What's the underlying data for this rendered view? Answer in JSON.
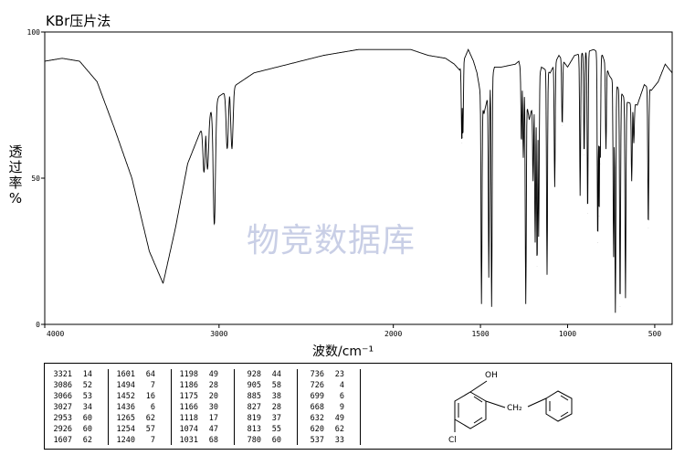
{
  "title": "KBr压片法",
  "watermark": "物竞数据库",
  "chart_data": {
    "type": "line",
    "title": "KBr压片法",
    "xlabel": "波数/cm⁻¹",
    "ylabel_chars": [
      "透",
      "过",
      "率",
      "%"
    ],
    "xlim": [
      4000,
      400
    ],
    "ylim": [
      0,
      100
    ],
    "x_ticks": [
      4000,
      3000,
      2000,
      1500,
      1000,
      500
    ],
    "y_ticks": [
      0,
      50,
      100
    ],
    "grid": false,
    "baseline": [
      [
        4000,
        90
      ],
      [
        3900,
        91
      ],
      [
        3800,
        90
      ],
      [
        3700,
        83
      ],
      [
        3600,
        67
      ],
      [
        3500,
        50
      ],
      [
        3400,
        25
      ],
      [
        3321,
        14
      ],
      [
        3250,
        33
      ],
      [
        3180,
        55
      ],
      [
        3100,
        67
      ],
      [
        3000,
        78
      ],
      [
        2900,
        82
      ],
      [
        2800,
        86
      ],
      [
        2600,
        89
      ],
      [
        2400,
        92
      ],
      [
        2200,
        94
      ],
      [
        2000,
        94
      ],
      [
        1900,
        94
      ],
      [
        1800,
        92
      ],
      [
        1700,
        91
      ],
      [
        1650,
        89
      ],
      [
        1620,
        87
      ],
      [
        1570,
        94
      ],
      [
        1540,
        90
      ],
      [
        1520,
        86
      ],
      [
        1480,
        72
      ],
      [
        1420,
        88
      ],
      [
        1380,
        88
      ],
      [
        1300,
        89
      ],
      [
        1280,
        90
      ],
      [
        1260,
        85
      ],
      [
        1220,
        70
      ],
      [
        1150,
        88
      ],
      [
        1100,
        86
      ],
      [
        1050,
        92
      ],
      [
        1000,
        88
      ],
      [
        960,
        92
      ],
      [
        900,
        93
      ],
      [
        850,
        94
      ],
      [
        800,
        92
      ],
      [
        760,
        85
      ],
      [
        700,
        80
      ],
      [
        660,
        76
      ],
      [
        600,
        75
      ],
      [
        560,
        82
      ],
      [
        520,
        80
      ],
      [
        480,
        83
      ],
      [
        440,
        89
      ],
      [
        400,
        86
      ]
    ],
    "peaks": [
      {
        "wavenumber": 3321,
        "transmittance": 14
      },
      {
        "wavenumber": 3086,
        "transmittance": 52
      },
      {
        "wavenumber": 3066,
        "transmittance": 53
      },
      {
        "wavenumber": 3027,
        "transmittance": 34
      },
      {
        "wavenumber": 2953,
        "transmittance": 60
      },
      {
        "wavenumber": 2926,
        "transmittance": 60
      },
      {
        "wavenumber": 1607,
        "transmittance": 62
      },
      {
        "wavenumber": 1601,
        "transmittance": 64
      },
      {
        "wavenumber": 1494,
        "transmittance": 7
      },
      {
        "wavenumber": 1452,
        "transmittance": 16
      },
      {
        "wavenumber": 1436,
        "transmittance": 6
      },
      {
        "wavenumber": 1265,
        "transmittance": 62
      },
      {
        "wavenumber": 1254,
        "transmittance": 57
      },
      {
        "wavenumber": 1240,
        "transmittance": 7
      },
      {
        "wavenumber": 1198,
        "transmittance": 49
      },
      {
        "wavenumber": 1186,
        "transmittance": 28
      },
      {
        "wavenumber": 1175,
        "transmittance": 20
      },
      {
        "wavenumber": 1166,
        "transmittance": 30
      },
      {
        "wavenumber": 1118,
        "transmittance": 17
      },
      {
        "wavenumber": 1074,
        "transmittance": 47
      },
      {
        "wavenumber": 1031,
        "transmittance": 68
      },
      {
        "wavenumber": 928,
        "transmittance": 44
      },
      {
        "wavenumber": 905,
        "transmittance": 58
      },
      {
        "wavenumber": 885,
        "transmittance": 38
      },
      {
        "wavenumber": 827,
        "transmittance": 28
      },
      {
        "wavenumber": 819,
        "transmittance": 37
      },
      {
        "wavenumber": 813,
        "transmittance": 55
      },
      {
        "wavenumber": 780,
        "transmittance": 60
      },
      {
        "wavenumber": 736,
        "transmittance": 23
      },
      {
        "wavenumber": 726,
        "transmittance": 4
      },
      {
        "wavenumber": 699,
        "transmittance": 6
      },
      {
        "wavenumber": 668,
        "transmittance": 9
      },
      {
        "wavenumber": 632,
        "transmittance": 49
      },
      {
        "wavenumber": 620,
        "transmittance": 62
      },
      {
        "wavenumber": 537,
        "transmittance": 33
      }
    ]
  },
  "peak_table": {
    "columns": [
      [
        [
          "3321",
          "14"
        ],
        [
          "3086",
          "52"
        ],
        [
          "3066",
          "53"
        ],
        [
          "3027",
          "34"
        ],
        [
          "2953",
          "60"
        ],
        [
          "2926",
          "60"
        ],
        [
          "1607",
          "62"
        ]
      ],
      [
        [
          "1601",
          "64"
        ],
        [
          "1494",
          "7"
        ],
        [
          "1452",
          "16"
        ],
        [
          "1436",
          "6"
        ],
        [
          "1265",
          "62"
        ],
        [
          "1254",
          "57"
        ],
        [
          "1240",
          "7"
        ]
      ],
      [
        [
          "1198",
          "49"
        ],
        [
          "1186",
          "28"
        ],
        [
          "1175",
          "20"
        ],
        [
          "1166",
          "30"
        ],
        [
          "1118",
          "17"
        ],
        [
          "1074",
          "47"
        ],
        [
          "1031",
          "68"
        ]
      ],
      [
        [
          "928",
          "44"
        ],
        [
          "905",
          "58"
        ],
        [
          "885",
          "38"
        ],
        [
          "827",
          "28"
        ],
        [
          "819",
          "37"
        ],
        [
          "813",
          "55"
        ],
        [
          "780",
          "60"
        ]
      ],
      [
        [
          "736",
          "23"
        ],
        [
          "726",
          "4"
        ],
        [
          "699",
          "6"
        ],
        [
          "668",
          "9"
        ],
        [
          "632",
          "49"
        ],
        [
          "620",
          "62"
        ],
        [
          "537",
          "33"
        ]
      ]
    ]
  },
  "structure": {
    "oh_label": "OH",
    "ch2_label": "CH₂",
    "cl_label": "Cl"
  }
}
